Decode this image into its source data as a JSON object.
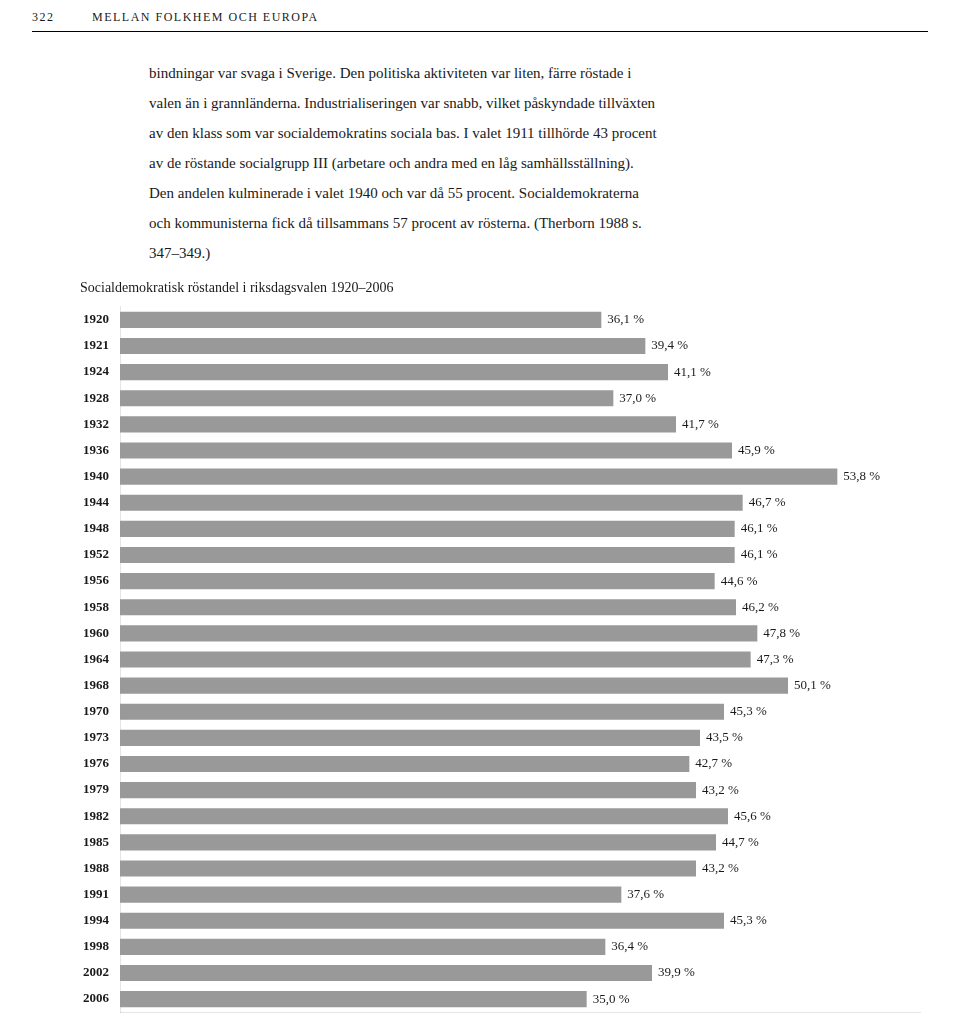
{
  "chart_data": {
    "type": "bar",
    "orientation": "horizontal",
    "header_number": "322",
    "header": "MELLAN FOLKHEM OCH EUROPA",
    "body_text": [
      "bindningar var svaga i Sverige. Den politiska aktiviteten var liten, färre röstade i",
      "valen än i grannländerna. Industrialiseringen var snabb, vilket påskyndade tillväxten",
      "av den klass som var socialdemokratins sociala bas. I valet 1911 tillhörde 43 procent",
      "av de röstande socialgrupp III (arbetare och andra med en låg samhällsställning).",
      "Den andelen kulminerade i valet 1940 och var då 55 procent. Socialdemokraterna",
      "och kommunisterna fick då tillsammans 57 procent av rösterna. (Therborn 1988 s.",
      "347–349.)"
    ],
    "title": "Socialdemokratisk röstandel i riksdagsvalen 1920–2006",
    "categories": [
      "1920",
      "1921",
      "1924",
      "1928",
      "1932",
      "1936",
      "1940",
      "1944",
      "1948",
      "1952",
      "1956",
      "1958",
      "1960",
      "1964",
      "1968",
      "1970",
      "1973",
      "1976",
      "1979",
      "1982",
      "1985",
      "1988",
      "1991",
      "1994",
      "1998",
      "2002",
      "2006"
    ],
    "values": [
      36.1,
      39.4,
      41.1,
      37.0,
      41.7,
      45.9,
      53.8,
      46.7,
      46.1,
      46.1,
      44.6,
      46.2,
      47.8,
      47.3,
      50.1,
      45.3,
      43.5,
      42.7,
      43.2,
      45.6,
      44.7,
      43.2,
      37.6,
      45.3,
      36.4,
      39.9,
      35.0
    ],
    "value_labels": [
      "36,1 %",
      "39,4 %",
      "41,1 %",
      "37,0 %",
      "41,7 %",
      "45,9 %",
      "53,8 %",
      "46,7 %",
      "46,1 %",
      "46,1 %",
      "44,6 %",
      "46,2 %",
      "47,8 %",
      "47,3 %",
      "50,1 %",
      "45,3 %",
      "43,5 %",
      "42,7 %",
      "43,2 %",
      "45,6 %",
      "44,7 %",
      "43,2 %",
      "37,6 %",
      "45,3 %",
      "36,4 %",
      "39,9 %",
      "35,0 %"
    ],
    "color": "#999999",
    "xlim": [
      0,
      60
    ],
    "data_labels": true,
    "tick_labels": "y",
    "grid": false
  }
}
